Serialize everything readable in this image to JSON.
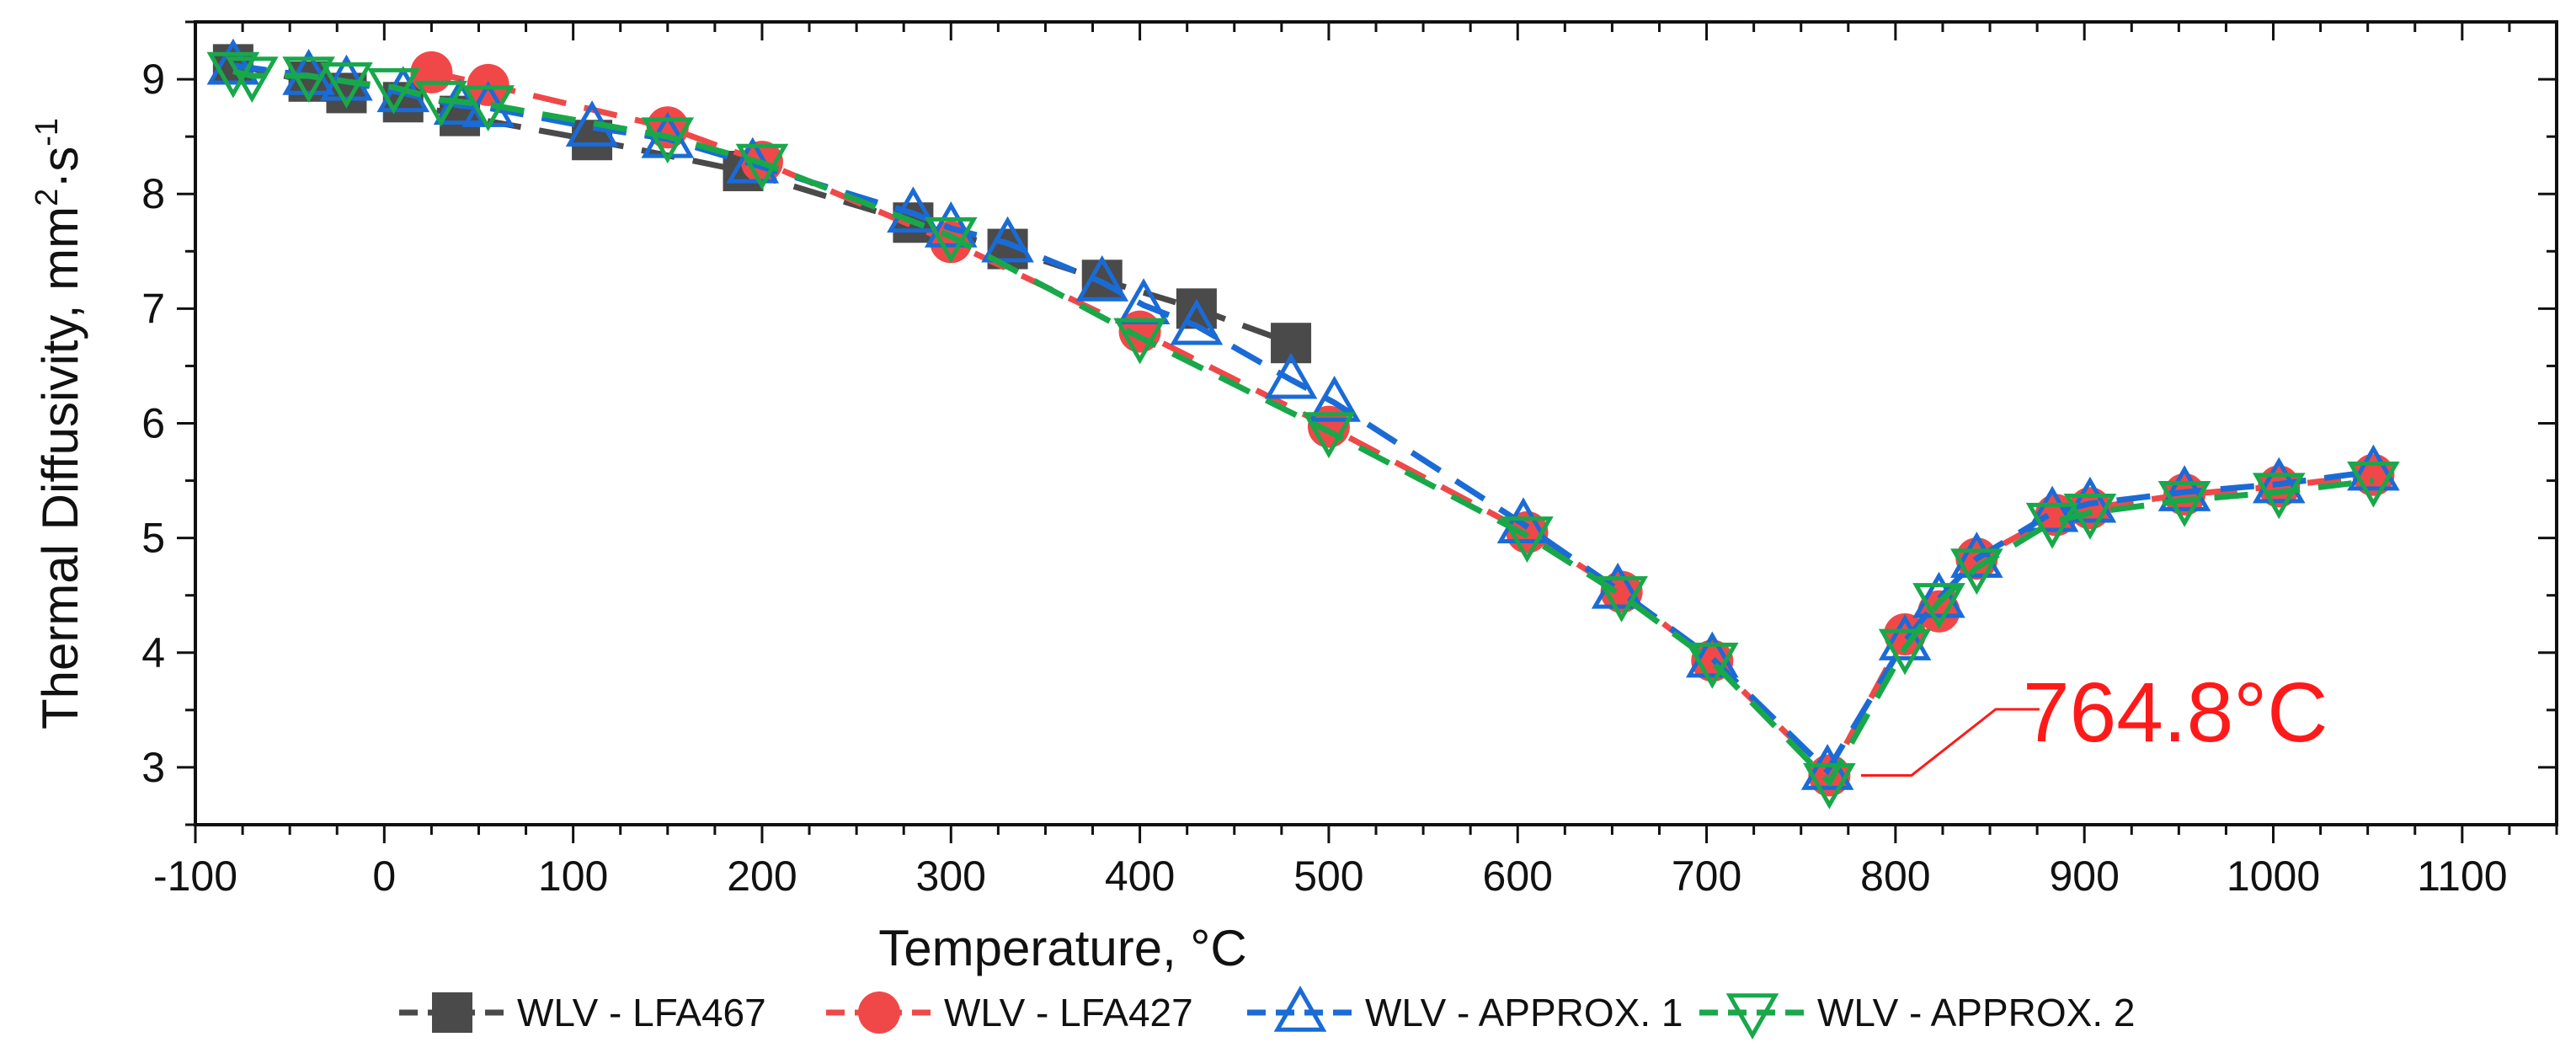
{
  "chart_data": {
    "type": "line",
    "title": "",
    "xlabel": "Temperature, °C",
    "ylabel": "Thermal Diffusivity, mm²·s⁻¹",
    "ylabel_parts": {
      "base": "Thermal Diffusivity, mm",
      "sup1": "2",
      "mid": "·s",
      "sup2": "-1"
    },
    "xlim": [
      -100,
      1150
    ],
    "ylim": [
      2.5,
      9.5
    ],
    "xticks": [
      -100,
      0,
      100,
      200,
      300,
      400,
      500,
      600,
      700,
      800,
      900,
      1000,
      1100
    ],
    "yticks": [
      3,
      4,
      5,
      6,
      7,
      8,
      9
    ],
    "x_minor_step": 25,
    "y_minor_step": 0.5,
    "grid": false,
    "legend_position": "bottom",
    "series": [
      {
        "name": "WLV - LFA467",
        "color": "#4a4a4a",
        "marker": "square",
        "x": [
          -80,
          -40,
          -20,
          10,
          40,
          110,
          190,
          280,
          330,
          380,
          430,
          480
        ],
        "y": [
          9.13,
          8.98,
          8.88,
          8.8,
          8.68,
          8.47,
          8.2,
          7.75,
          7.52,
          7.25,
          7.0,
          6.7
        ]
      },
      {
        "name": "WLV - LFA427",
        "color": "#f04848",
        "marker": "circle",
        "x": [
          25,
          55,
          150,
          200,
          300,
          400,
          500,
          605,
          655,
          703,
          765,
          805,
          823,
          843,
          885,
          903,
          953,
          1003,
          1053
        ],
        "y": [
          9.06,
          8.95,
          8.58,
          8.28,
          7.58,
          6.8,
          5.97,
          5.05,
          4.53,
          3.93,
          2.93,
          4.16,
          4.36,
          4.82,
          5.2,
          5.26,
          5.38,
          5.45,
          5.55
        ]
      },
      {
        "name": "WLV - APPROX. 1",
        "color": "#1a6bd6",
        "marker": "triangle-up",
        "x": [
          -80,
          -40,
          -20,
          10,
          40,
          55,
          110,
          150,
          195,
          280,
          300,
          330,
          380,
          402,
          430,
          480,
          503,
          603,
          653,
          703,
          764,
          805,
          823,
          843,
          883,
          903,
          953,
          1003,
          1053
        ],
        "y": [
          9.12,
          9.03,
          8.98,
          8.88,
          8.77,
          8.75,
          8.58,
          8.48,
          8.26,
          7.83,
          7.7,
          7.57,
          7.23,
          7.03,
          6.85,
          6.38,
          6.18,
          5.12,
          4.55,
          3.95,
          2.97,
          4.1,
          4.47,
          4.82,
          5.22,
          5.3,
          5.4,
          5.47,
          5.58
        ]
      },
      {
        "name": "WLV - APPROX. 2",
        "color": "#18a84a",
        "marker": "triangle-down",
        "x": [
          -80,
          -70,
          -40,
          -20,
          5,
          30,
          55,
          150,
          200,
          300,
          400,
          500,
          605,
          655,
          703,
          765,
          805,
          823,
          843,
          883,
          903,
          953,
          1003,
          1053
        ],
        "y": [
          9.07,
          9.03,
          9.03,
          8.98,
          8.93,
          8.82,
          8.78,
          8.5,
          8.27,
          7.63,
          6.75,
          5.93,
          5.02,
          4.5,
          3.92,
          2.87,
          4.04,
          4.44,
          4.74,
          5.14,
          5.22,
          5.33,
          5.4,
          5.5
        ]
      }
    ],
    "annotations": [
      {
        "text": "764.8°C",
        "x": 764.8,
        "y": 2.93,
        "color": "#ff1a1a"
      }
    ]
  }
}
